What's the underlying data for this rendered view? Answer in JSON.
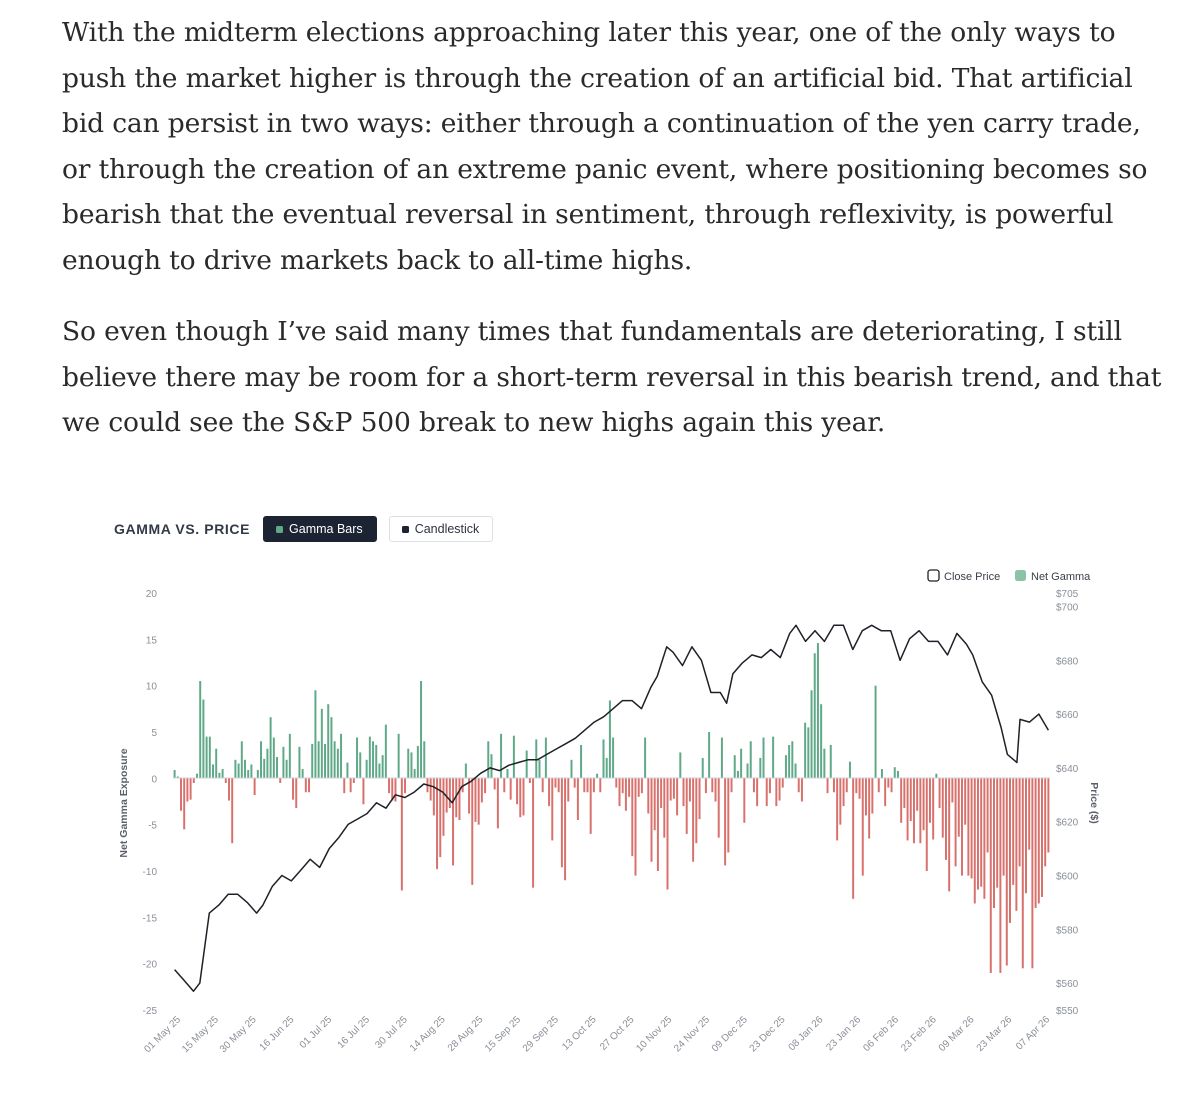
{
  "article": {
    "paragraphs": [
      "With the midterm elections approaching later this year, one of the only ways to push the market higher is through the creation of an artificial bid. That artificial bid can persist in two ways: either through a continuation of the yen carry trade, or through the creation of an extreme panic event, where positioning becomes so bearish that the eventual reversal in sentiment, through reflexivity, is powerful enough to drive markets back to all-time highs.",
      "So even though I’ve said many times that fundamentals are deteriorating, I still believe there may be room for a short-term reversal in this bearish trend, and that we could see the S&P 500 break to new highs again this year."
    ]
  },
  "chart_header": {
    "title": "GAMMA VS. PRICE",
    "toggle_active": "Gamma Bars",
    "toggle_inactive": "Candlestick"
  },
  "colors": {
    "positive": "#5fa888",
    "negative": "#d8716c",
    "price_line": "#1e2128",
    "axis_text": "#8a8f98",
    "active_bg": "#1c2332"
  },
  "chart_data": {
    "type": "bar",
    "overlay": "line",
    "title": "GAMMA VS. PRICE",
    "legend": {
      "placement": "top-right",
      "entries": [
        "Close Price",
        "Net Gamma"
      ]
    },
    "ylabel": "Net Gamma Exposure",
    "y2label": "Price ($)",
    "ylim": [
      -25,
      20
    ],
    "y2lim": [
      550,
      705
    ],
    "yticks": [
      "20",
      "15",
      "10",
      "5",
      "0",
      "-5",
      "-10",
      "-15",
      "-20",
      "-25"
    ],
    "y2ticks": [
      "$705",
      "$700",
      "$680",
      "$660",
      "$640",
      "$620",
      "$600",
      "$580",
      "$560",
      "$550"
    ],
    "y2tick_values": [
      705,
      700,
      680,
      660,
      640,
      620,
      600,
      580,
      560,
      550
    ],
    "xticks": [
      "01 May 25",
      "15 May 25",
      "30 May 25",
      "16 Jun 25",
      "01 Jul 25",
      "16 Jul 25",
      "30 Jul 25",
      "14 Aug 25",
      "28 Aug 25",
      "15 Sep 25",
      "29 Sep 25",
      "13 Oct 25",
      "27 Oct 25",
      "10 Nov 25",
      "24 Nov 25",
      "09 Dec 25",
      "23 Dec 25",
      "08 Jan 26",
      "23 Jan 26",
      "06 Feb 26",
      "23 Feb 26",
      "09 Mar 26",
      "23 Mar 26",
      "07 Apr 26"
    ],
    "grid": false,
    "gamma": [
      0.9,
      0.2,
      -3.5,
      -5.5,
      -2.5,
      -2.3,
      -0.5,
      0.5,
      10.5,
      8.5,
      4.5,
      4.5,
      1.5,
      3.2,
      0.6,
      1.0,
      -0.5,
      -2.4,
      -7.0,
      2.0,
      1.6,
      4.0,
      2.0,
      0.9,
      1.5,
      -1.8,
      0.9,
      4.0,
      2.1,
      3.2,
      6.6,
      4.4,
      2.3,
      -0.5,
      3.4,
      2.0,
      4.8,
      -2.3,
      -3.2,
      3.4,
      1.0,
      -1.5,
      -1.5,
      3.7,
      9.5,
      4.0,
      7.5,
      3.7,
      8.0,
      6.6,
      4.0,
      3.2,
      4.8,
      -1.6,
      1.7,
      -1.5,
      -0.5,
      4.4,
      2.8,
      -2.8,
      2.0,
      4.5,
      4.0,
      3.6,
      1.6,
      2.5,
      5.8,
      -1.6,
      -2.4,
      -2.5,
      4.8,
      -12.1,
      -1.6,
      3.2,
      2.8,
      1.0,
      3.5,
      10.5,
      4.0,
      -1.5,
      -2.4,
      -4.0,
      -9.8,
      -8.5,
      -6.2,
      -3.7,
      -3.2,
      -9.4,
      -4.2,
      -4.5,
      -1.5,
      1.6,
      -3.8,
      -11.5,
      -4.7,
      -5.0,
      -2.6,
      -1.6,
      4.0,
      2.6,
      -1.2,
      -5.4,
      4.8,
      -1.5,
      1.0,
      -2.3,
      4.6,
      -2.8,
      -4.2,
      -4.0,
      3.0,
      -0.5,
      -11.8,
      4.2,
      2.0,
      -1.5,
      4.4,
      -3.0,
      -6.7,
      -1.0,
      -1.5,
      -9.6,
      -11.0,
      -2.5,
      2.0,
      -1.0,
      -4.5,
      3.6,
      -1.5,
      -1.5,
      -6.0,
      -1.5,
      0.5,
      -1.5,
      4.2,
      2.2,
      8.4,
      4.4,
      -1.0,
      -3.0,
      -1.6,
      -3.5,
      -2.0,
      -8.4,
      -10.5,
      -2.0,
      -1.6,
      4.4,
      -3.8,
      -9.0,
      -5.6,
      -10.0,
      -3.2,
      -6.4,
      -12.0,
      -2.4,
      -2.2,
      -4.0,
      2.8,
      -3.0,
      -6.0,
      -2.5,
      -9.0,
      -7.0,
      -4.4,
      2.2,
      -1.6,
      5.0,
      -1.5,
      -2.5,
      -6.4,
      4.4,
      -9.4,
      -8.0,
      -1.5,
      2.5,
      0.8,
      3.2,
      -4.8,
      1.6,
      4.0,
      -1.5,
      -3.0,
      2.2,
      4.4,
      -3.0,
      -1.6,
      4.5,
      -3.0,
      -2.4,
      -1.0,
      2.5,
      3.6,
      4.0,
      1.6,
      -1.5,
      -2.5,
      6.0,
      5.5,
      9.5,
      13.5,
      14.6,
      8.0,
      3.2,
      -1.6,
      3.6,
      -1.5,
      -6.7,
      -5.0,
      -3.0,
      -1.5,
      1.8,
      -13.0,
      -1.6,
      -2.2,
      -10.5,
      -4.0,
      -6.5,
      -3.8,
      10.0,
      -1.5,
      1.0,
      -3.0,
      -1.0,
      -1.5,
      1.2,
      0.8,
      -4.8,
      -3.2,
      -6.7,
      -4.6,
      -7.0,
      -3.5,
      -7.0,
      -5.6,
      -10.0,
      -4.8,
      -6.6,
      0.5,
      -3.2,
      -6.4,
      -8.8,
      -12.2,
      -2.6,
      -9.5,
      -6.3,
      -10.5,
      -5.0,
      -10.5,
      -10.8,
      -13.5,
      -12.0,
      -11.7,
      -13.0,
      -8.0,
      -21.0,
      -14.0,
      -11.8,
      -21.0,
      -10.5,
      -20.2,
      -15.6,
      -11.5,
      -14.3,
      -9.5,
      -20.5,
      -12.4,
      -7.7,
      -20.5,
      -14.0,
      -13.5,
      -12.8,
      -9.5,
      -8.0
    ],
    "price_series": [
      [
        0,
        565
      ],
      [
        3,
        561
      ],
      [
        6,
        557
      ],
      [
        8,
        560
      ],
      [
        11,
        586
      ],
      [
        14,
        589
      ],
      [
        17,
        593
      ],
      [
        20,
        593
      ],
      [
        23,
        590
      ],
      [
        26,
        586
      ],
      [
        28,
        589
      ],
      [
        31,
        596
      ],
      [
        34,
        600
      ],
      [
        37,
        598
      ],
      [
        40,
        602
      ],
      [
        43,
        606
      ],
      [
        46,
        603
      ],
      [
        49,
        610
      ],
      [
        52,
        614
      ],
      [
        55,
        619
      ],
      [
        58,
        621
      ],
      [
        61,
        623
      ],
      [
        64,
        627
      ],
      [
        67,
        625
      ],
      [
        70,
        630
      ],
      [
        73,
        629
      ],
      [
        76,
        631
      ],
      [
        79,
        634
      ],
      [
        82,
        633
      ],
      [
        85,
        631
      ],
      [
        88,
        627
      ],
      [
        91,
        633
      ],
      [
        94,
        635
      ],
      [
        97,
        638
      ],
      [
        100,
        640
      ],
      [
        103,
        639
      ],
      [
        106,
        641
      ],
      [
        109,
        642
      ],
      [
        112,
        643
      ],
      [
        115,
        643
      ],
      [
        118,
        645
      ],
      [
        121,
        647
      ],
      [
        124,
        649
      ],
      [
        127,
        651
      ],
      [
        130,
        654
      ],
      [
        133,
        657
      ],
      [
        136,
        659
      ],
      [
        139,
        662
      ],
      [
        142,
        665
      ],
      [
        145,
        665
      ],
      [
        148,
        662
      ],
      [
        151,
        670
      ],
      [
        153,
        674
      ],
      [
        156,
        685
      ],
      [
        158,
        683
      ],
      [
        161,
        678
      ],
      [
        164,
        685
      ],
      [
        167,
        680
      ],
      [
        170,
        668
      ],
      [
        173,
        668
      ],
      [
        175,
        664
      ],
      [
        177,
        675
      ],
      [
        180,
        679
      ],
      [
        183,
        682
      ],
      [
        186,
        681
      ],
      [
        189,
        684
      ],
      [
        192,
        681
      ],
      [
        195,
        690
      ],
      [
        197,
        693
      ],
      [
        200,
        687
      ],
      [
        203,
        691
      ],
      [
        206,
        687
      ],
      [
        209,
        693
      ],
      [
        212,
        693
      ],
      [
        215,
        684
      ],
      [
        218,
        691
      ],
      [
        221,
        693
      ],
      [
        224,
        691
      ],
      [
        227,
        691
      ],
      [
        230,
        680
      ],
      [
        233,
        688
      ],
      [
        236,
        691
      ],
      [
        239,
        687
      ],
      [
        242,
        687
      ],
      [
        245,
        682
      ],
      [
        248,
        690
      ],
      [
        251,
        686
      ],
      [
        253,
        682
      ],
      [
        256,
        672
      ],
      [
        259,
        667
      ],
      [
        262,
        655
      ],
      [
        264,
        645
      ],
      [
        267,
        642
      ],
      [
        268,
        658
      ],
      [
        271,
        657
      ],
      [
        274,
        660
      ],
      [
        277,
        654
      ]
    ],
    "dates_note_start": "01 May 25",
    "dates_note_end": "07 Apr 26"
  }
}
